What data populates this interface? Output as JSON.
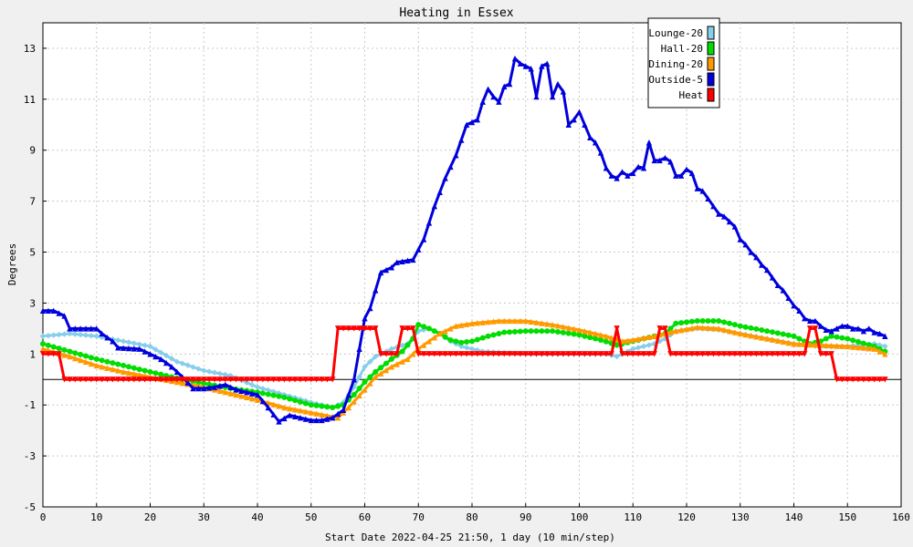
{
  "chart_data": {
    "type": "line",
    "title": "Heating in Essex",
    "xlabel": "Start Date 2022-04-25 21:50, 1 day (10 min/step)",
    "ylabel": "Degrees",
    "xlim": [
      0,
      160
    ],
    "ylim": [
      -5,
      14
    ],
    "xticks": [
      0,
      10,
      20,
      30,
      40,
      50,
      60,
      70,
      80,
      90,
      100,
      110,
      120,
      130,
      140,
      150,
      160
    ],
    "yticks": [
      -5,
      -3,
      -1,
      1,
      3,
      5,
      7,
      9,
      11,
      13
    ],
    "grid": true,
    "legend_position": "top-right",
    "series": [
      {
        "name": "Lounge-20",
        "color": "#87ceeb",
        "marker": "diamond",
        "points": [
          [
            0,
            1.7
          ],
          [
            5,
            1.8
          ],
          [
            10,
            1.7
          ],
          [
            15,
            1.5
          ],
          [
            20,
            1.3
          ],
          [
            25,
            0.7
          ],
          [
            30,
            0.35
          ],
          [
            35,
            0.15
          ],
          [
            40,
            -0.3
          ],
          [
            45,
            -0.6
          ],
          [
            50,
            -0.9
          ],
          [
            54,
            -1.1
          ],
          [
            56,
            -0.9
          ],
          [
            58,
            -0.3
          ],
          [
            60,
            0.5
          ],
          [
            62,
            0.9
          ],
          [
            65,
            1.2
          ],
          [
            68,
            1.4
          ],
          [
            70,
            1.9
          ],
          [
            72,
            2.0
          ],
          [
            74,
            1.8
          ],
          [
            76,
            1.5
          ],
          [
            78,
            1.3
          ],
          [
            82,
            1.1
          ],
          [
            86,
            1.05
          ],
          [
            90,
            1.0
          ],
          [
            95,
            1.0
          ],
          [
            100,
            1.0
          ],
          [
            105,
            1.0
          ],
          [
            107,
            0.9
          ],
          [
            110,
            1.2
          ],
          [
            114,
            1.4
          ],
          [
            116,
            1.6
          ],
          [
            118,
            1.9
          ],
          [
            122,
            2.0
          ],
          [
            126,
            1.95
          ],
          [
            130,
            1.8
          ],
          [
            135,
            1.6
          ],
          [
            140,
            1.4
          ],
          [
            145,
            1.3
          ],
          [
            150,
            1.3
          ],
          [
            155,
            1.4
          ],
          [
            157,
            1.3
          ]
        ]
      },
      {
        "name": "Hall-20",
        "color": "#00dd00",
        "marker": "circle",
        "points": [
          [
            0,
            1.4
          ],
          [
            5,
            1.1
          ],
          [
            10,
            0.8
          ],
          [
            15,
            0.55
          ],
          [
            20,
            0.3
          ],
          [
            25,
            0.05
          ],
          [
            30,
            -0.15
          ],
          [
            35,
            -0.35
          ],
          [
            40,
            -0.5
          ],
          [
            45,
            -0.7
          ],
          [
            50,
            -1.0
          ],
          [
            54,
            -1.1
          ],
          [
            56,
            -1.0
          ],
          [
            58,
            -0.6
          ],
          [
            60,
            -0.1
          ],
          [
            62,
            0.3
          ],
          [
            65,
            0.8
          ],
          [
            67,
            1.1
          ],
          [
            69,
            1.6
          ],
          [
            70,
            2.15
          ],
          [
            72,
            2.0
          ],
          [
            74,
            1.8
          ],
          [
            76,
            1.55
          ],
          [
            78,
            1.45
          ],
          [
            80,
            1.5
          ],
          [
            83,
            1.7
          ],
          [
            86,
            1.85
          ],
          [
            90,
            1.9
          ],
          [
            95,
            1.9
          ],
          [
            100,
            1.75
          ],
          [
            104,
            1.55
          ],
          [
            107,
            1.35
          ],
          [
            110,
            1.5
          ],
          [
            114,
            1.7
          ],
          [
            116,
            1.8
          ],
          [
            118,
            2.2
          ],
          [
            122,
            2.3
          ],
          [
            126,
            2.3
          ],
          [
            130,
            2.1
          ],
          [
            135,
            1.9
          ],
          [
            140,
            1.7
          ],
          [
            143,
            1.4
          ],
          [
            145,
            1.5
          ],
          [
            147,
            1.7
          ],
          [
            150,
            1.6
          ],
          [
            155,
            1.3
          ],
          [
            157,
            1.1
          ]
        ]
      },
      {
        "name": "Dining-20",
        "color": "#ff9900",
        "marker": "triangle-up",
        "points": [
          [
            0,
            1.2
          ],
          [
            5,
            0.9
          ],
          [
            10,
            0.55
          ],
          [
            15,
            0.3
          ],
          [
            20,
            0.1
          ],
          [
            25,
            -0.1
          ],
          [
            30,
            -0.3
          ],
          [
            35,
            -0.55
          ],
          [
            40,
            -0.8
          ],
          [
            45,
            -1.1
          ],
          [
            50,
            -1.3
          ],
          [
            55,
            -1.5
          ],
          [
            57,
            -1.1
          ],
          [
            60,
            -0.4
          ],
          [
            62,
            0.1
          ],
          [
            65,
            0.5
          ],
          [
            68,
            0.8
          ],
          [
            70,
            1.2
          ],
          [
            72,
            1.5
          ],
          [
            74,
            1.8
          ],
          [
            77,
            2.1
          ],
          [
            80,
            2.2
          ],
          [
            85,
            2.3
          ],
          [
            90,
            2.3
          ],
          [
            95,
            2.15
          ],
          [
            100,
            1.95
          ],
          [
            105,
            1.7
          ],
          [
            108,
            1.5
          ],
          [
            110,
            1.55
          ],
          [
            114,
            1.7
          ],
          [
            118,
            1.9
          ],
          [
            122,
            2.05
          ],
          [
            126,
            2.0
          ],
          [
            130,
            1.8
          ],
          [
            135,
            1.6
          ],
          [
            140,
            1.4
          ],
          [
            145,
            1.35
          ],
          [
            150,
            1.3
          ],
          [
            155,
            1.2
          ],
          [
            157,
            1.0
          ]
        ]
      },
      {
        "name": "Outside-5",
        "color": "#0000dd",
        "marker": "triangle-up",
        "points": [
          [
            0,
            2.7
          ],
          [
            2,
            2.7
          ],
          [
            4,
            2.5
          ],
          [
            5,
            2.0
          ],
          [
            8,
            2.0
          ],
          [
            10,
            2.0
          ],
          [
            11,
            1.8
          ],
          [
            13,
            1.5
          ],
          [
            14,
            1.25
          ],
          [
            18,
            1.2
          ],
          [
            20,
            1.0
          ],
          [
            22,
            0.8
          ],
          [
            24,
            0.5
          ],
          [
            26,
            0.1
          ],
          [
            28,
            -0.35
          ],
          [
            30,
            -0.35
          ],
          [
            32,
            -0.3
          ],
          [
            34,
            -0.2
          ],
          [
            36,
            -0.4
          ],
          [
            38,
            -0.5
          ],
          [
            40,
            -0.6
          ],
          [
            42,
            -1.1
          ],
          [
            44,
            -1.65
          ],
          [
            46,
            -1.4
          ],
          [
            48,
            -1.5
          ],
          [
            50,
            -1.6
          ],
          [
            52,
            -1.6
          ],
          [
            54,
            -1.5
          ],
          [
            56,
            -1.2
          ],
          [
            58,
            0.0
          ],
          [
            60,
            2.4
          ],
          [
            61,
            2.8
          ],
          [
            63,
            4.2
          ],
          [
            65,
            4.4
          ],
          [
            66,
            4.6
          ],
          [
            69,
            4.7
          ],
          [
            71,
            5.5
          ],
          [
            73,
            6.8
          ],
          [
            75,
            7.9
          ],
          [
            77,
            8.8
          ],
          [
            79,
            10.0
          ],
          [
            81,
            10.2
          ],
          [
            82,
            10.9
          ],
          [
            83,
            11.4
          ],
          [
            84,
            11.1
          ],
          [
            85,
            10.9
          ],
          [
            86,
            11.5
          ],
          [
            87,
            11.6
          ],
          [
            88,
            12.6
          ],
          [
            89,
            12.4
          ],
          [
            90,
            12.3
          ],
          [
            91,
            12.2
          ],
          [
            92,
            11.1
          ],
          [
            93,
            12.3
          ],
          [
            94,
            12.4
          ],
          [
            95,
            11.1
          ],
          [
            96,
            11.6
          ],
          [
            97,
            11.3
          ],
          [
            98,
            10.0
          ],
          [
            99,
            10.2
          ],
          [
            100,
            10.5
          ],
          [
            101,
            10.0
          ],
          [
            102,
            9.5
          ],
          [
            103,
            9.3
          ],
          [
            104,
            8.9
          ],
          [
            105,
            8.3
          ],
          [
            106,
            8.0
          ],
          [
            107,
            7.9
          ],
          [
            108,
            8.15
          ],
          [
            109,
            8.0
          ],
          [
            110,
            8.1
          ],
          [
            111,
            8.35
          ],
          [
            112,
            8.3
          ],
          [
            113,
            9.3
          ],
          [
            114,
            8.6
          ],
          [
            115,
            8.6
          ],
          [
            116,
            8.7
          ],
          [
            117,
            8.55
          ],
          [
            118,
            8.0
          ],
          [
            119,
            8.0
          ],
          [
            120,
            8.25
          ],
          [
            121,
            8.1
          ],
          [
            122,
            7.5
          ],
          [
            123,
            7.4
          ],
          [
            124,
            7.1
          ],
          [
            125,
            6.8
          ],
          [
            126,
            6.5
          ],
          [
            127,
            6.4
          ],
          [
            128,
            6.2
          ],
          [
            129,
            6.0
          ],
          [
            130,
            5.5
          ],
          [
            131,
            5.3
          ],
          [
            132,
            5.0
          ],
          [
            133,
            4.8
          ],
          [
            134,
            4.5
          ],
          [
            135,
            4.3
          ],
          [
            136,
            4.0
          ],
          [
            137,
            3.7
          ],
          [
            138,
            3.5
          ],
          [
            139,
            3.2
          ],
          [
            140,
            2.9
          ],
          [
            141,
            2.7
          ],
          [
            142,
            2.4
          ],
          [
            143,
            2.3
          ],
          [
            144,
            2.3
          ],
          [
            145,
            2.1
          ],
          [
            146,
            1.95
          ],
          [
            147,
            1.9
          ],
          [
            148,
            2.0
          ],
          [
            149,
            2.1
          ],
          [
            150,
            2.1
          ],
          [
            151,
            2.0
          ],
          [
            152,
            2.0
          ],
          [
            153,
            1.9
          ],
          [
            154,
            2.0
          ],
          [
            155,
            1.85
          ],
          [
            156,
            1.8
          ],
          [
            157,
            1.7
          ]
        ]
      },
      {
        "name": "Heat",
        "color": "#ff0000",
        "marker": "triangle-down",
        "points": [
          [
            0,
            1
          ],
          [
            3,
            1
          ],
          [
            4,
            0
          ],
          [
            54,
            0
          ],
          [
            55,
            2
          ],
          [
            62,
            2
          ],
          [
            63,
            1
          ],
          [
            66,
            1
          ],
          [
            67,
            2
          ],
          [
            69,
            2
          ],
          [
            70,
            1
          ],
          [
            106,
            1
          ],
          [
            107,
            2
          ],
          [
            108,
            1
          ],
          [
            114,
            1
          ],
          [
            115,
            2
          ],
          [
            116,
            2
          ],
          [
            117,
            1
          ],
          [
            142,
            1
          ],
          [
            143,
            2
          ],
          [
            144,
            2
          ],
          [
            145,
            1
          ],
          [
            147,
            1
          ],
          [
            148,
            0
          ],
          [
            157,
            0
          ]
        ]
      }
    ]
  }
}
